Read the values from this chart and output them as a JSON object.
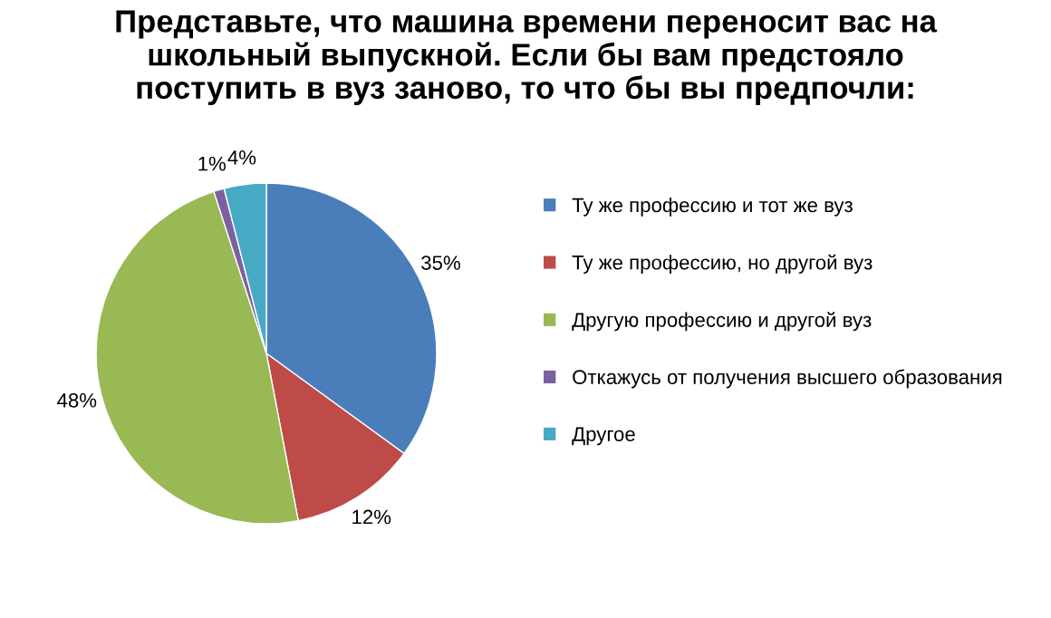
{
  "chart_data": {
    "type": "pie",
    "title": "Представьте, что машина времени переносит вас на\nшкольный выпускной. Если бы вам предстояло\nпоступить в вуз заново, то что бы вы предпочли:",
    "categories": [
      "Ту же профессию и тот же вуз",
      "Ту же профессию, но другой вуз",
      "Другую профессию и другой вуз",
      "Откажусь от получения высшего образования",
      "Другое"
    ],
    "values": [
      35,
      12,
      48,
      1,
      4
    ],
    "colors": [
      "#4a7ebb",
      "#be4b48",
      "#98b954",
      "#7d60a0",
      "#46aac5"
    ],
    "value_labels": [
      "35%",
      "12%",
      "48%",
      "1%",
      "4%"
    ],
    "legend": "right"
  }
}
